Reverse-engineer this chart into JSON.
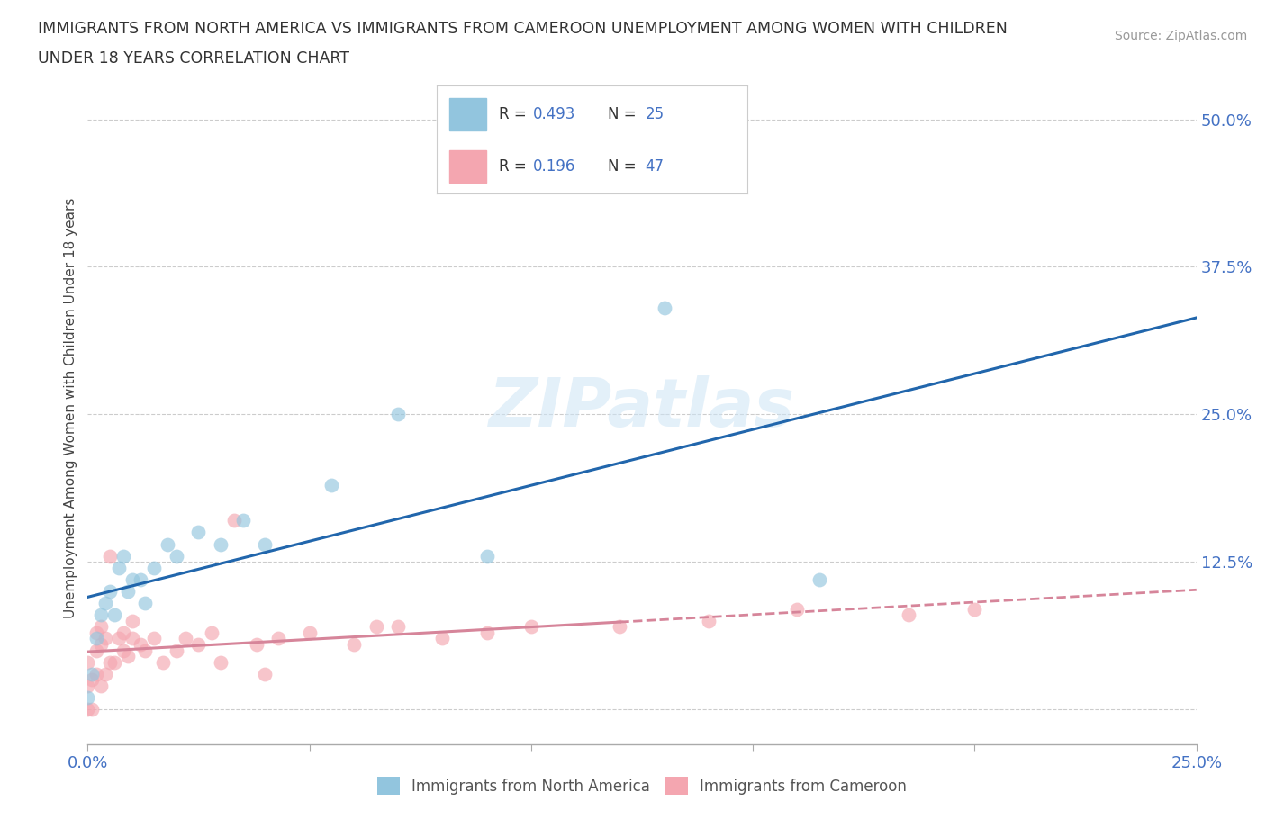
{
  "title_line1": "IMMIGRANTS FROM NORTH AMERICA VS IMMIGRANTS FROM CAMEROON UNEMPLOYMENT AMONG WOMEN WITH CHILDREN",
  "title_line2": "UNDER 18 YEARS CORRELATION CHART",
  "source_text": "Source: ZipAtlas.com",
  "ylabel": "Unemployment Among Women with Children Under 18 years",
  "xlim": [
    0.0,
    0.25
  ],
  "ylim": [
    -0.03,
    0.54
  ],
  "color_blue": "#92c5de",
  "color_pink": "#f4a6b0",
  "trendline_blue": "#2166ac",
  "trendline_pink": "#d6859a",
  "bg_color": "#ffffff",
  "watermark": "ZIPatlas",
  "legend_R1": "0.493",
  "legend_N1": "25",
  "legend_R2": "0.196",
  "legend_N2": "47",
  "north_america_x": [
    0.0,
    0.001,
    0.002,
    0.003,
    0.004,
    0.005,
    0.006,
    0.007,
    0.008,
    0.009,
    0.01,
    0.012,
    0.013,
    0.015,
    0.018,
    0.02,
    0.025,
    0.03,
    0.035,
    0.04,
    0.055,
    0.07,
    0.09,
    0.13,
    0.165
  ],
  "north_america_y": [
    0.01,
    0.03,
    0.06,
    0.08,
    0.09,
    0.1,
    0.08,
    0.12,
    0.13,
    0.1,
    0.11,
    0.11,
    0.09,
    0.12,
    0.14,
    0.13,
    0.15,
    0.14,
    0.16,
    0.14,
    0.19,
    0.25,
    0.13,
    0.34,
    0.11
  ],
  "cameroon_x": [
    0.0,
    0.0,
    0.0,
    0.001,
    0.001,
    0.002,
    0.002,
    0.002,
    0.003,
    0.003,
    0.003,
    0.004,
    0.004,
    0.005,
    0.005,
    0.006,
    0.007,
    0.008,
    0.008,
    0.009,
    0.01,
    0.01,
    0.012,
    0.013,
    0.015,
    0.017,
    0.02,
    0.022,
    0.025,
    0.028,
    0.03,
    0.033,
    0.038,
    0.04,
    0.043,
    0.05,
    0.06,
    0.065,
    0.07,
    0.08,
    0.09,
    0.1,
    0.12,
    0.14,
    0.16,
    0.185,
    0.2
  ],
  "cameroon_y": [
    0.0,
    0.02,
    0.04,
    0.0,
    0.025,
    0.03,
    0.05,
    0.065,
    0.02,
    0.055,
    0.07,
    0.03,
    0.06,
    0.04,
    0.13,
    0.04,
    0.06,
    0.05,
    0.065,
    0.045,
    0.06,
    0.075,
    0.055,
    0.05,
    0.06,
    0.04,
    0.05,
    0.06,
    0.055,
    0.065,
    0.04,
    0.16,
    0.055,
    0.03,
    0.06,
    0.065,
    0.055,
    0.07,
    0.07,
    0.06,
    0.065,
    0.07,
    0.07,
    0.075,
    0.085,
    0.08,
    0.085
  ]
}
